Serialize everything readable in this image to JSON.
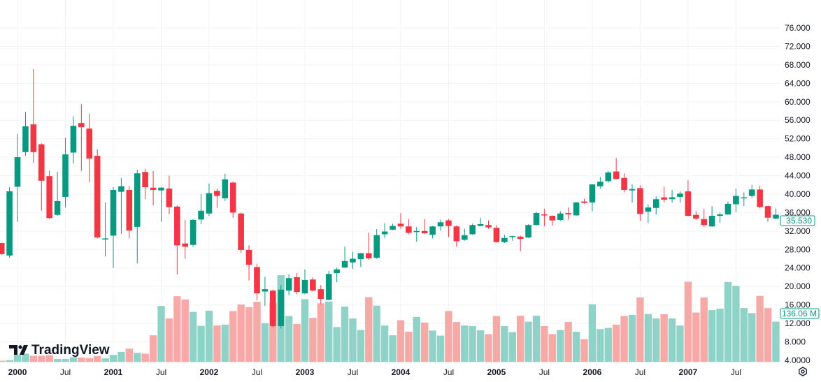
{
  "chart_data": {
    "type": "candlestick",
    "interval": "monthly",
    "start_month": "1999-11",
    "colors": {
      "up": "#089981",
      "down": "#f23645",
      "up_volume": "#8fd3c8",
      "down_volume": "#f7a9a7",
      "grid": "#f2f3f5",
      "text": "#131722"
    },
    "ylim": [
      4,
      76
    ],
    "y_ticks": [
      {
        "value": 76,
        "label": "76.000"
      },
      {
        "value": 72,
        "label": "72.000"
      },
      {
        "value": 68,
        "label": "68.000"
      },
      {
        "value": 64,
        "label": "64.000"
      },
      {
        "value": 60,
        "label": "60.000"
      },
      {
        "value": 56,
        "label": "56.000"
      },
      {
        "value": 52,
        "label": "52.000"
      },
      {
        "value": 48,
        "label": "48.000"
      },
      {
        "value": 44,
        "label": "44.000"
      },
      {
        "value": 40,
        "label": "40.000"
      },
      {
        "value": 36,
        "label": "36.000"
      },
      {
        "value": 32,
        "label": "32.000"
      },
      {
        "value": 28,
        "label": "28.000"
      },
      {
        "value": 24,
        "label": "24.000"
      },
      {
        "value": 20,
        "label": "20.000"
      },
      {
        "value": 16,
        "label": "16.000"
      },
      {
        "value": 12,
        "label": "12.000"
      },
      {
        "value": 8,
        "label": "8.000"
      },
      {
        "value": 4,
        "label": "4.0000"
      }
    ],
    "x_ticks": [
      {
        "month_index": 2,
        "label": "2000",
        "bold": true
      },
      {
        "month_index": 8,
        "label": "Jul",
        "bold": false
      },
      {
        "month_index": 14,
        "label": "2001",
        "bold": true
      },
      {
        "month_index": 20,
        "label": "Jul",
        "bold": false
      },
      {
        "month_index": 26,
        "label": "2002",
        "bold": true
      },
      {
        "month_index": 32,
        "label": "Jul",
        "bold": false
      },
      {
        "month_index": 38,
        "label": "2003",
        "bold": true
      },
      {
        "month_index": 44,
        "label": "Jul",
        "bold": false
      },
      {
        "month_index": 50,
        "label": "2004",
        "bold": true
      },
      {
        "month_index": 56,
        "label": "Jul",
        "bold": false
      },
      {
        "month_index": 62,
        "label": "2005",
        "bold": true
      },
      {
        "month_index": 68,
        "label": "Jul",
        "bold": false
      },
      {
        "month_index": 74,
        "label": "2006",
        "bold": true
      },
      {
        "month_index": 80,
        "label": "Jul",
        "bold": false
      },
      {
        "month_index": 86,
        "label": "2007",
        "bold": true
      },
      {
        "month_index": 92,
        "label": "Jul",
        "bold": false
      }
    ],
    "ohlc": [
      [
        29.4,
        29.5,
        26.8,
        27.0
      ],
      [
        26.7,
        41.5,
        26.2,
        40.6
      ],
      [
        41.6,
        53.0,
        34.0,
        48.0
      ],
      [
        49.1,
        57.8,
        48.3,
        54.7
      ],
      [
        55.1,
        67.1,
        46.8,
        49.1
      ],
      [
        50.8,
        51.0,
        36.4,
        42.9
      ],
      [
        43.9,
        45.1,
        34.6,
        34.8
      ],
      [
        35.5,
        44.8,
        35.3,
        38.5
      ],
      [
        39.4,
        52.2,
        37.1,
        48.6
      ],
      [
        49.0,
        56.9,
        46.6,
        54.8
      ],
      [
        55.4,
        59.5,
        45.0,
        54.5
      ],
      [
        54.2,
        57.4,
        42.6,
        47.7
      ],
      [
        48.3,
        49.7,
        30.4,
        30.6
      ],
      [
        30.2,
        38.2,
        26.5,
        30.4
      ],
      [
        31.0,
        41.5,
        24.0,
        40.9
      ],
      [
        40.5,
        43.5,
        31.4,
        41.7
      ],
      [
        40.9,
        41.7,
        30.4,
        32.1
      ],
      [
        32.9,
        45.3,
        25.0,
        44.5
      ],
      [
        44.8,
        45.5,
        38.9,
        41.5
      ],
      [
        41.4,
        45.0,
        37.6,
        40.9
      ],
      [
        40.8,
        41.5,
        34.0,
        41.4
      ],
      [
        41.2,
        44.0,
        35.7,
        37.2
      ],
      [
        37.3,
        37.5,
        22.6,
        28.9
      ],
      [
        29.3,
        34.4,
        26.0,
        28.6
      ],
      [
        29.0,
        34.6,
        28.6,
        34.4
      ],
      [
        34.5,
        40.0,
        33.5,
        36.4
      ],
      [
        35.8,
        42.3,
        35.3,
        40.2
      ],
      [
        40.7,
        41.2,
        37.0,
        39.6
      ],
      [
        39.1,
        44.4,
        38.5,
        43.2
      ],
      [
        42.5,
        42.7,
        34.9,
        36.0
      ],
      [
        35.8,
        36.0,
        27.3,
        27.9
      ],
      [
        27.9,
        28.9,
        21.3,
        24.7
      ],
      [
        24.2,
        24.9,
        17.0,
        18.5
      ],
      [
        18.9,
        22.1,
        15.8,
        19.4
      ],
      [
        19.1,
        19.3,
        11.2,
        11.4
      ],
      [
        11.4,
        20.3,
        10.9,
        19.3
      ],
      [
        19.1,
        22.6,
        18.1,
        21.8
      ],
      [
        22.0,
        22.9,
        18.3,
        18.8
      ],
      [
        18.5,
        23.7,
        18.3,
        21.4
      ],
      [
        21.5,
        22.0,
        18.9,
        19.1
      ],
      [
        19.4,
        20.3,
        16.2,
        17.3
      ],
      [
        17.1,
        23.4,
        17.0,
        22.7
      ],
      [
        22.9,
        24.1,
        20.9,
        23.7
      ],
      [
        24.1,
        28.6,
        24.0,
        25.5
      ],
      [
        25.2,
        27.5,
        23.8,
        26.0
      ],
      [
        25.9,
        27.3,
        24.2,
        27.2
      ],
      [
        27.2,
        31.7,
        25.8,
        26.1
      ],
      [
        26.2,
        32.4,
        26.0,
        31.1
      ],
      [
        31.3,
        33.7,
        30.5,
        31.9
      ],
      [
        32.3,
        33.6,
        32.2,
        33.1
      ],
      [
        33.6,
        35.9,
        32.5,
        33.0
      ],
      [
        33.0,
        34.6,
        31.3,
        31.6
      ],
      [
        31.8,
        32.9,
        29.7,
        32.0
      ],
      [
        32.0,
        34.6,
        31.4,
        31.5
      ],
      [
        31.2,
        33.1,
        30.4,
        33.0
      ],
      [
        33.0,
        34.5,
        32.1,
        33.9
      ],
      [
        34.3,
        34.6,
        30.7,
        33.1
      ],
      [
        33.0,
        33.2,
        28.6,
        29.8
      ],
      [
        30.1,
        32.5,
        29.9,
        31.1
      ],
      [
        31.3,
        33.6,
        31.2,
        33.3
      ],
      [
        33.1,
        34.9,
        33.0,
        33.5
      ],
      [
        33.3,
        34.3,
        32.5,
        32.8
      ],
      [
        32.7,
        33.3,
        29.5,
        29.6
      ],
      [
        29.6,
        31.2,
        29.4,
        30.5
      ],
      [
        30.7,
        31.0,
        29.9,
        30.9
      ],
      [
        30.8,
        31.0,
        27.6,
        30.3
      ],
      [
        30.6,
        33.5,
        30.5,
        33.3
      ],
      [
        33.3,
        36.2,
        33.2,
        35.9
      ],
      [
        35.6,
        36.8,
        33.1,
        35.4
      ],
      [
        35.3,
        35.4,
        33.2,
        34.3
      ],
      [
        34.4,
        36.3,
        34.2,
        35.8
      ],
      [
        35.9,
        37.1,
        34.5,
        35.6
      ],
      [
        35.4,
        38.3,
        35.3,
        38.2
      ],
      [
        38.4,
        39.0,
        37.9,
        38.1
      ],
      [
        38.2,
        42.2,
        36.3,
        42.1
      ],
      [
        41.7,
        43.7,
        41.2,
        42.7
      ],
      [
        42.8,
        45.0,
        42.5,
        44.7
      ],
      [
        44.9,
        47.8,
        43.2,
        43.3
      ],
      [
        43.5,
        44.5,
        40.4,
        40.9
      ],
      [
        40.8,
        42.1,
        38.2,
        41.1
      ],
      [
        41.3,
        41.9,
        34.2,
        35.7
      ],
      [
        36.2,
        37.8,
        33.7,
        37.1
      ],
      [
        37.0,
        39.5,
        35.6,
        38.9
      ],
      [
        39.3,
        41.6,
        38.2,
        38.8
      ],
      [
        38.9,
        40.9,
        38.2,
        39.3
      ],
      [
        39.4,
        40.6,
        38.2,
        40.1
      ],
      [
        40.6,
        43.0,
        35.2,
        35.3
      ],
      [
        35.5,
        36.3,
        34.4,
        34.7
      ],
      [
        34.6,
        36.8,
        32.9,
        33.3
      ],
      [
        33.0,
        37.4,
        32.9,
        35.3
      ],
      [
        35.3,
        36.0,
        33.8,
        35.6
      ],
      [
        35.6,
        38.4,
        35.5,
        37.9
      ],
      [
        37.8,
        41.2,
        36.1,
        39.6
      ],
      [
        39.1,
        40.4,
        37.4,
        39.3
      ],
      [
        39.6,
        42.0,
        39.2,
        41.0
      ],
      [
        41.0,
        41.8,
        36.9,
        37.2
      ],
      [
        37.4,
        37.5,
        34.0,
        34.9
      ],
      [
        34.7,
        36.9,
        34.6,
        35.53
      ]
    ],
    "volume_millions": [
      4,
      6,
      24,
      28,
      21,
      21,
      23,
      10,
      10,
      16,
      15,
      13,
      20,
      12,
      24,
      34,
      45,
      31,
      28,
      90,
      189,
      147,
      222,
      211,
      169,
      122,
      173,
      123,
      126,
      172,
      194,
      185,
      203,
      131,
      200,
      293,
      155,
      128,
      212,
      149,
      198,
      204,
      118,
      187,
      147,
      108,
      219,
      190,
      123,
      90,
      141,
      102,
      152,
      133,
      106,
      89,
      172,
      135,
      123,
      121,
      107,
      94,
      155,
      121,
      101,
      156,
      136,
      156,
      121,
      94,
      108,
      135,
      102,
      77,
      195,
      111,
      115,
      126,
      155,
      159,
      218,
      162,
      147,
      161,
      147,
      123,
      271,
      167,
      218,
      175,
      180,
      270,
      257,
      182,
      165,
      223,
      182,
      136.06
    ],
    "last_price_label": "35.530",
    "last_volume_label": "136.06 M"
  },
  "branding": {
    "logo_text": "TradingView"
  },
  "icons": {
    "settings": "settings-hexagon-icon"
  }
}
